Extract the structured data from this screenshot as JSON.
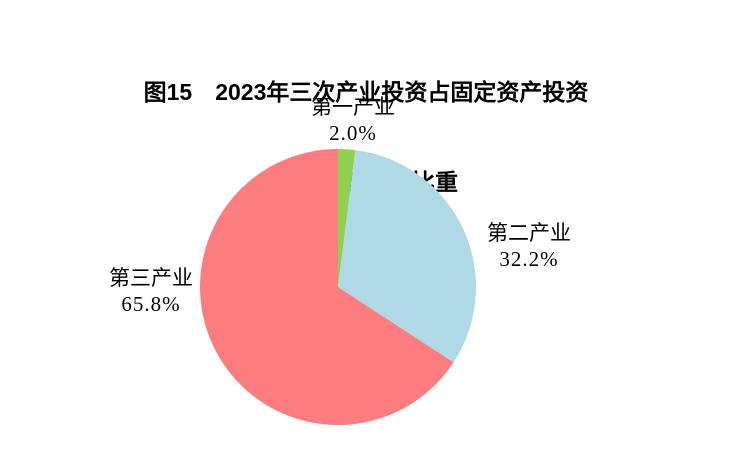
{
  "title": {
    "line1": "图15　2023年三次产业投资占固定资产投资",
    "line2": "（不含农户）比重"
  },
  "chart_data": {
    "type": "pie",
    "title": "图15　2023年三次产业投资占固定资产投资（不含农户）比重",
    "start_angle_deg": -90,
    "direction": "clockwise",
    "legend_position": "none",
    "labels_outside": true,
    "background_color": "#ffffff",
    "slices": [
      {
        "label": "第一产业",
        "value": 2.0,
        "value_text": "2.0%",
        "color": "#8FD14E"
      },
      {
        "label": "第二产业",
        "value": 32.2,
        "value_text": "32.2%",
        "color": "#B0D9E6"
      },
      {
        "label": "第三产业",
        "value": 65.8,
        "value_text": "65.8%",
        "color": "#FC7D80"
      }
    ]
  }
}
